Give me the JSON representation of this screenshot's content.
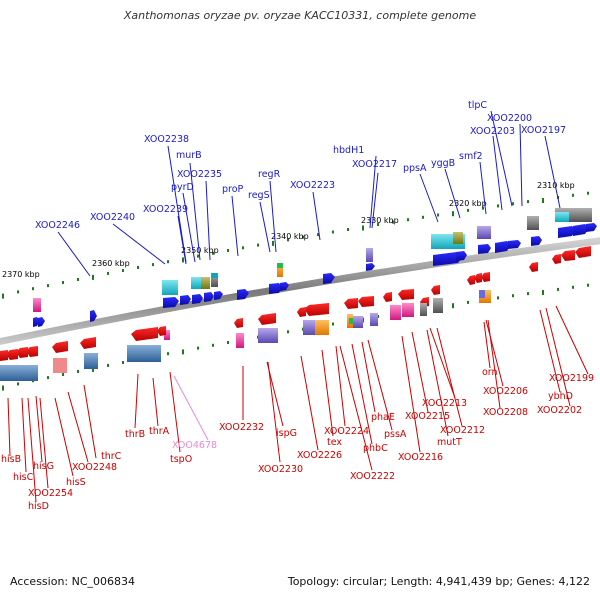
{
  "title": "Xanthomonas oryzae pv. oryzae KACC10331, complete genome",
  "accession_label": "Accession: NC_006834",
  "summary_label": "Topology: circular; Length: 4,941,439 bp; Genes: 4,122",
  "colors": {
    "forward_gene": "#1a1acc",
    "reverse_gene": "#e60000",
    "forward_label": "#1a1acc",
    "reverse_label": "#cc0000",
    "pink_label": "#e88ad8",
    "scale_tick": "#1f7a1f",
    "backbone": "#8a8a8a"
  },
  "scale_ticks": [
    {
      "label": "2310 kbp"
    },
    {
      "label": "2320 kbp"
    },
    {
      "label": "2330 kbp"
    },
    {
      "label": "2340 kbp"
    },
    {
      "label": "2350 kbp"
    },
    {
      "label": "2360 kbp"
    },
    {
      "label": "2370 kbp"
    }
  ],
  "forward_labels": [
    {
      "text": "tlpC"
    },
    {
      "text": "XOO2200"
    },
    {
      "text": "XOO2203"
    },
    {
      "text": "XOO2197"
    },
    {
      "text": "hbdH1"
    },
    {
      "text": "XOO2217"
    },
    {
      "text": "smf2"
    },
    {
      "text": "yggB"
    },
    {
      "text": "ppsA"
    },
    {
      "text": "XOO2238"
    },
    {
      "text": "murB"
    },
    {
      "text": "XOO2235"
    },
    {
      "text": "pyrD"
    },
    {
      "text": "XOO2239"
    },
    {
      "text": "proP"
    },
    {
      "text": "regR"
    },
    {
      "text": "regS"
    },
    {
      "text": "XOO2223"
    },
    {
      "text": "XOO2240"
    },
    {
      "text": "XOO2246"
    }
  ],
  "reverse_labels": [
    {
      "text": "XOO2232"
    },
    {
      "text": "ispG"
    },
    {
      "text": "XOO2230"
    },
    {
      "text": "XOO2226"
    },
    {
      "text": "tex"
    },
    {
      "text": "XOO2224"
    },
    {
      "text": "phaE"
    },
    {
      "text": "phbC"
    },
    {
      "text": "pssA"
    },
    {
      "text": "XOO2222"
    },
    {
      "text": "XOO2216"
    },
    {
      "text": "XOO2215"
    },
    {
      "text": "XOO2213"
    },
    {
      "text": "XOO2212"
    },
    {
      "text": "mutT"
    },
    {
      "text": "orn"
    },
    {
      "text": "XOO2206"
    },
    {
      "text": "XOO2208"
    },
    {
      "text": "ybhD"
    },
    {
      "text": "XOO2199"
    },
    {
      "text": "XOO2202"
    },
    {
      "text": "thrB"
    },
    {
      "text": "thrA"
    },
    {
      "text": "tspO"
    },
    {
      "text": "thrC"
    },
    {
      "text": "XOO2248"
    },
    {
      "text": "hisS"
    },
    {
      "text": "hisG"
    },
    {
      "text": "hisC"
    },
    {
      "text": "hisB"
    },
    {
      "text": "XOO2254"
    },
    {
      "text": "hisD"
    }
  ],
  "pink_labels": [
    {
      "text": "XOO4678"
    }
  ]
}
